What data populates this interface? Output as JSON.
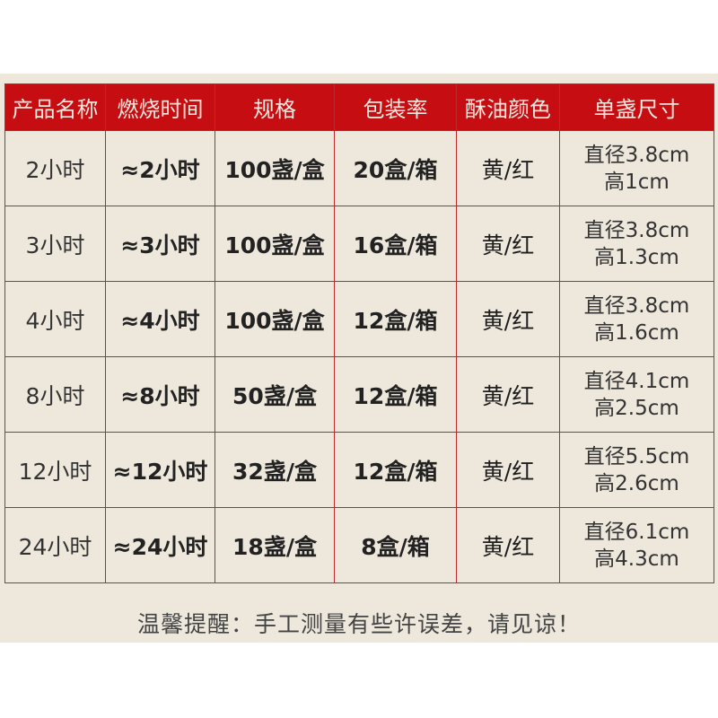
{
  "table": {
    "headers": [
      "产品名称",
      "燃烧时间",
      "规格",
      "包装率",
      "酥油颜色",
      "单盏尺寸"
    ],
    "rows": [
      {
        "name": "2小时",
        "burn": "≈2小时",
        "spec": "100盏/盒",
        "pack": "20盒/箱",
        "color": "黄/红",
        "size_d": "直径3.8cm",
        "size_h": "高1cm"
      },
      {
        "name": "3小时",
        "burn": "≈3小时",
        "spec": "100盏/盒",
        "pack": "16盒/箱",
        "color": "黄/红",
        "size_d": "直径3.8cm",
        "size_h": "高1.3cm"
      },
      {
        "name": "4小时",
        "burn": "≈4小时",
        "spec": "100盏/盒",
        "pack": "12盒/箱",
        "color": "黄/红",
        "size_d": "直径3.8cm",
        "size_h": "高1.6cm"
      },
      {
        "name": "8小时",
        "burn": "≈8小时",
        "spec": "50盏/盒",
        "pack": "12盒/箱",
        "color": "黄/红",
        "size_d": "直径4.1cm",
        "size_h": "高2.5cm"
      },
      {
        "name": "12小时",
        "burn": "≈12小时",
        "spec": "32盏/盒",
        "pack": "12盒/箱",
        "color": "黄/红",
        "size_d": "直径5.5cm",
        "size_h": "高2.6cm"
      },
      {
        "name": "24小时",
        "burn": "≈24小时",
        "spec": "18盏/盒",
        "pack": "8盒/箱",
        "color": "黄/红",
        "size_d": "直径6.1cm",
        "size_h": "高4.3cm"
      }
    ]
  },
  "note": "温馨提醒：手工测量有些许误差，请见谅！",
  "colors": {
    "header_bg": "#c50d12",
    "border": "#c0272d",
    "background": "#ede7dc"
  }
}
